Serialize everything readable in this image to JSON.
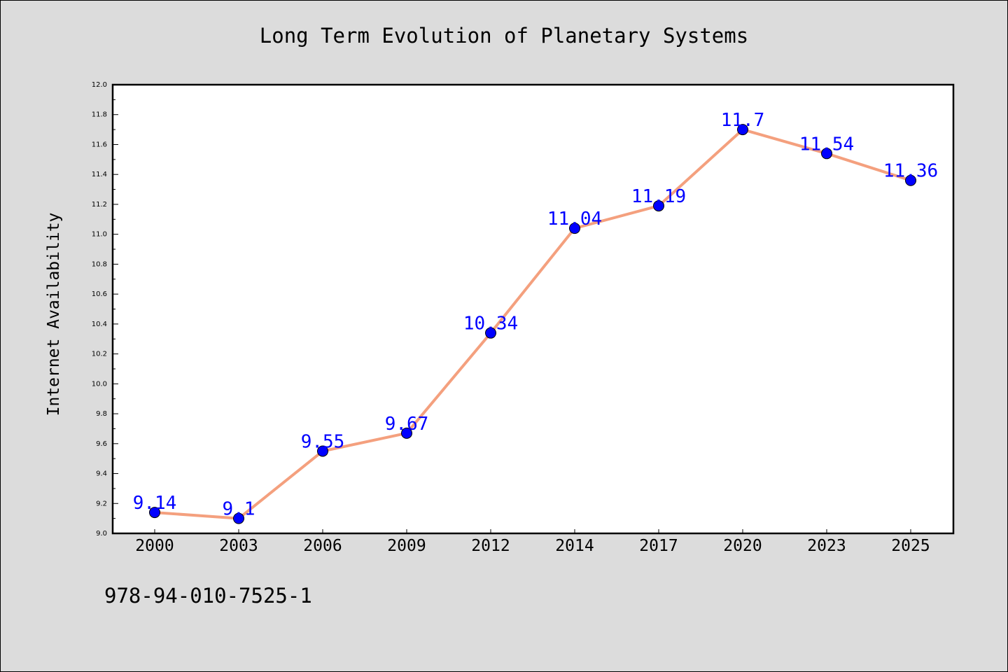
{
  "footnote": "978-94-010-7525-1",
  "colors": {
    "background": "#dcdcdc",
    "plot_background": "#ffffff",
    "line": "#f4a07e",
    "marker": "#0000ff",
    "data_label": "#0000ff"
  },
  "chart_data": {
    "type": "line",
    "title": "Long Term Evolution of Planetary Systems",
    "xlabel": "",
    "ylabel": "Internet Availability",
    "categories": [
      "2000",
      "2003",
      "2006",
      "2009",
      "2012",
      "2014",
      "2017",
      "2020",
      "2023",
      "2025"
    ],
    "series": [
      {
        "values": [
          9.14,
          9.1,
          9.55,
          9.67,
          10.34,
          11.04,
          11.19,
          11.7,
          11.54,
          11.36
        ],
        "data_labels": [
          "9.14",
          "9.1",
          "9.55",
          "9.67",
          "10.34",
          "11.04",
          "11.19",
          "11.7",
          "11.54",
          "11.36"
        ]
      }
    ],
    "ylim": [
      9.0,
      12.0
    ],
    "yticks": [
      "9.0",
      "9.2",
      "9.4",
      "9.6",
      "9.8",
      "10.0",
      "10.2",
      "10.4",
      "10.6",
      "10.8",
      "11.0",
      "11.2",
      "11.4",
      "11.6",
      "11.8",
      "12.0"
    ],
    "grid": false,
    "legend": "none"
  }
}
